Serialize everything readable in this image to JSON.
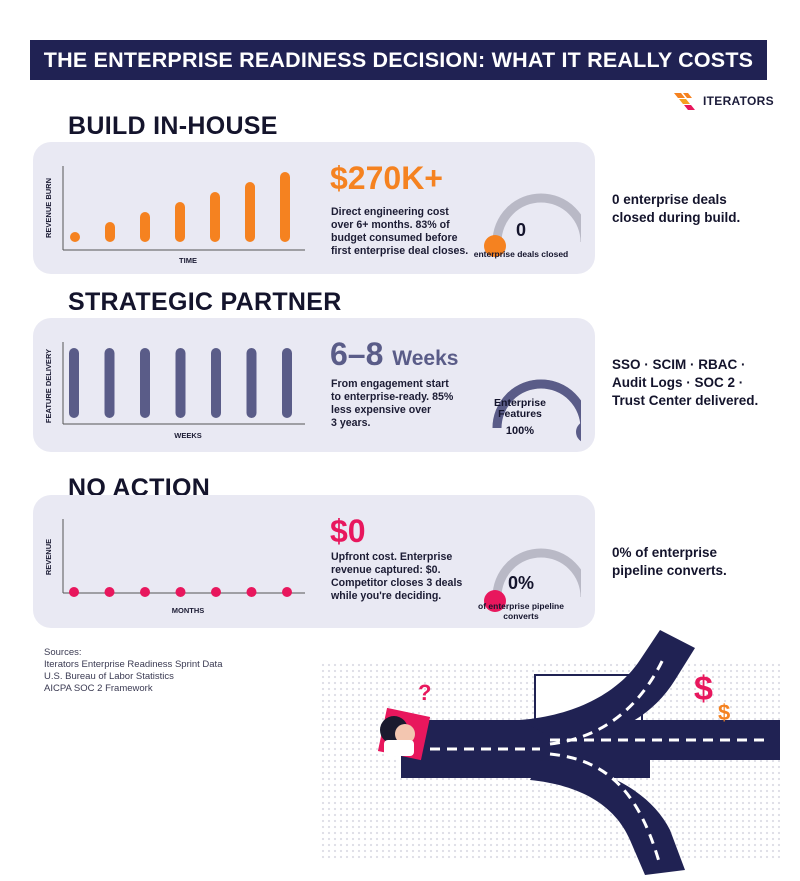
{
  "header": {
    "title": "THE ENTERPRISE READINESS DECISION: WHAT IT REALLY COSTS",
    "brand": "ITERATORS"
  },
  "sections": [
    {
      "heading": "BUILD IN-HOUSE",
      "chart": {
        "ylabel": "REVENUE BURN",
        "xlabel": "TIME"
      },
      "headline": "$270K+",
      "description": "Direct engineering cost\nover 6+ months. 83% of\nbudget consumed before\nfirst enterprise deal closes.",
      "gauge": {
        "value": "0",
        "label": "enterprise deals closed"
      },
      "note": "0 enterprise deals\nclosed during build."
    },
    {
      "heading": "STRATEGIC PARTNER",
      "chart": {
        "ylabel": "FEATURE DELIVERY",
        "xlabel": "WEEKS"
      },
      "headline_main": "6–8",
      "headline_unit": "Weeks",
      "description": "From engagement start\nto enterprise-ready. 85%\nless expensive over\n3 years.",
      "gauge": {
        "label_line1": "Enterprise",
        "label_line2": "Features",
        "value": "100%"
      },
      "note": "SSO · SCIM · RBAC ·\nAudit Logs · SOC 2 ·\nTrust Center delivered."
    },
    {
      "heading": "NO ACTION",
      "chart": {
        "ylabel": "REVENUE",
        "xlabel": "MONTHS"
      },
      "headline": "$0",
      "description": "Upfront cost. Enterprise\nrevenue captured: $0.\nCompetitor closes 3 deals\nwhile you're deciding.",
      "gauge": {
        "value": "0%",
        "label_line1": "of enterprise pipeline",
        "label_line2": "converts"
      },
      "note": "0% of enterprise\npipeline converts."
    }
  ],
  "chart_data": [
    {
      "type": "bar",
      "series": [
        {
          "values": [
            1,
            2,
            3,
            4,
            5,
            6,
            7
          ]
        }
      ],
      "color": "#f58220"
    },
    {
      "type": "bar",
      "series": [
        {
          "values": [
            10,
            10,
            10,
            10,
            10,
            10,
            10
          ]
        }
      ],
      "color": "#5a5c88"
    },
    {
      "type": "scatter",
      "series": [
        {
          "values": [
            0,
            0,
            0,
            0,
            0,
            0,
            0
          ]
        }
      ],
      "color": "#e8175d"
    }
  ],
  "gauges": [
    {
      "fraction": 0.0,
      "color": "#f58220"
    },
    {
      "fraction": 1.0,
      "color": "#5a5c88"
    },
    {
      "fraction": 0.0,
      "color": "#e8175d"
    }
  ],
  "sources": {
    "heading": "Sources:",
    "items": [
      "Iterators Enterprise Readiness Sprint Data",
      "U.S. Bureau of Labor Statistics",
      "AICPA SOC 2 Framework"
    ]
  },
  "illustration": {
    "question_mark": "?",
    "dollar_big": "$",
    "dollar_small": "$"
  },
  "colors": {
    "navy": "#202253",
    "orange": "#f58220",
    "slate": "#5a5c88",
    "pink": "#e8175d",
    "card": "#e9e9f3"
  }
}
